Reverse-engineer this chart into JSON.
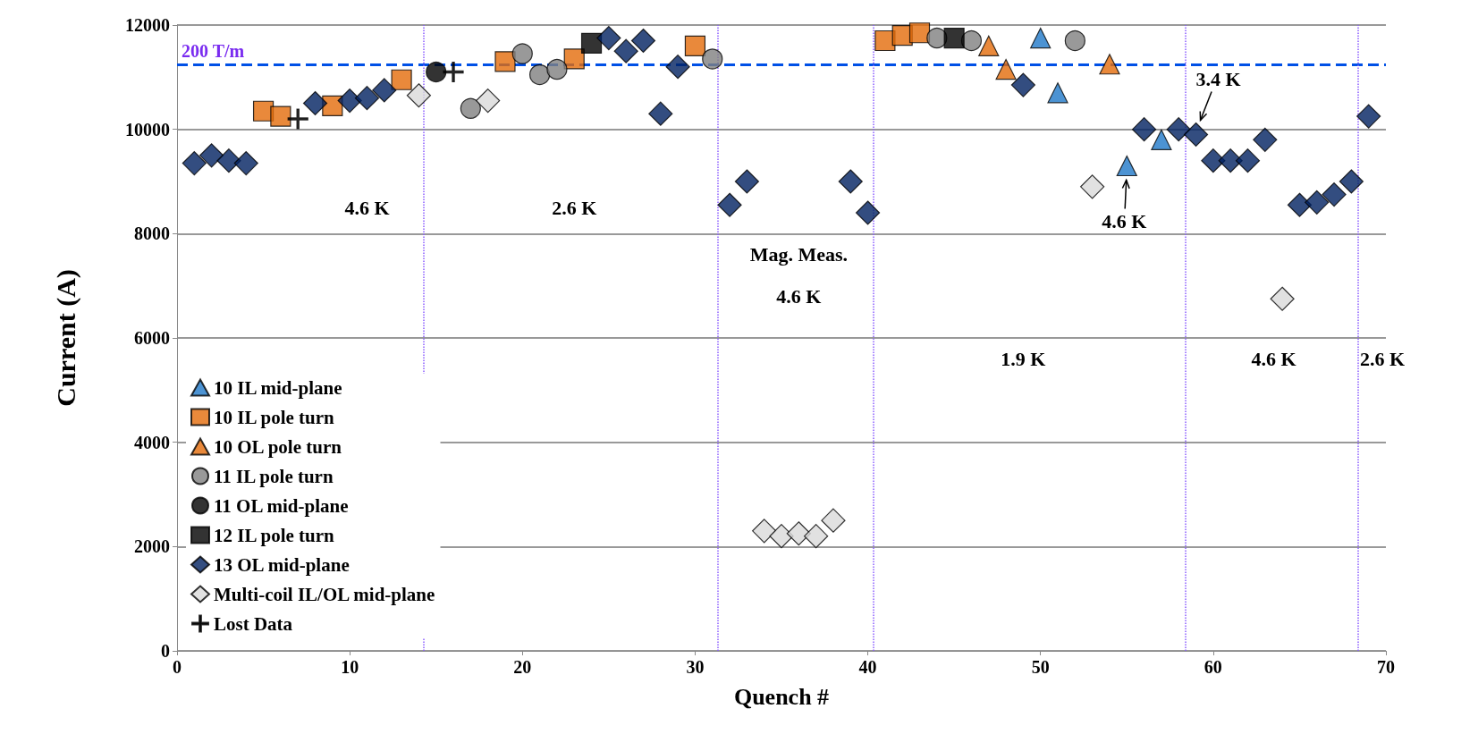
{
  "chart_data": {
    "type": "scatter",
    "xlabel": "Quench #",
    "ylabel": "Current (A)",
    "xlim": [
      0,
      70
    ],
    "xticks": [
      0,
      10,
      20,
      30,
      40,
      50,
      60,
      70
    ],
    "ylim": [
      0,
      12000
    ],
    "yticks": [
      0,
      2000,
      4000,
      6000,
      8000,
      10000,
      12000
    ],
    "grid": "y",
    "legend": "bottom left",
    "series": [
      {
        "name": "10 IL mid-plane",
        "color": "#1f78c8",
        "marker": "triangle",
        "x": [
          50,
          51,
          55,
          57
        ],
        "values": [
          11750,
          10700,
          9300,
          9800
        ]
      },
      {
        "name": "10 IL pole turn",
        "color": "#e36c0a",
        "marker": "square",
        "x": [
          5,
          6,
          9,
          13,
          19,
          23,
          30,
          41,
          42,
          43
        ],
        "values": [
          10350,
          10250,
          10450,
          10950,
          11300,
          11350,
          11600,
          11700,
          11800,
          11850
        ]
      },
      {
        "name": "10 OL pole turn",
        "color": "#e36c0a",
        "marker": "triangle",
        "x": [
          47,
          48,
          54
        ],
        "values": [
          11600,
          11150,
          11250
        ]
      },
      {
        "name": "11 IL pole turn",
        "color": "#808080",
        "marker": "circle",
        "x": [
          17,
          20,
          21,
          22,
          31,
          44,
          46,
          52
        ],
        "values": [
          10400,
          11450,
          11050,
          11150,
          11350,
          11750,
          11700,
          11700
        ]
      },
      {
        "name": "11 OL mid-plane",
        "color": "#000000",
        "marker": "circle",
        "x": [
          15
        ],
        "values": [
          11100
        ]
      },
      {
        "name": "12 IL pole turn",
        "color": "#000000",
        "marker": "square",
        "x": [
          24,
          45
        ],
        "values": [
          11650,
          11750
        ]
      },
      {
        "name": "13 OL mid-plane",
        "color": "#002060",
        "marker": "diamond",
        "x": [
          1,
          2,
          3,
          4,
          8,
          10,
          11,
          12,
          25,
          26,
          27,
          28,
          29,
          32,
          33,
          39,
          40,
          49,
          56,
          58,
          59,
          60,
          61,
          62,
          63,
          65,
          66,
          67,
          68,
          69
        ],
        "values": [
          9350,
          9500,
          9400,
          9350,
          10500,
          10550,
          10600,
          10750,
          11750,
          11500,
          11700,
          10300,
          11200,
          8550,
          9000,
          9000,
          8400,
          10850,
          10000,
          10000,
          9900,
          9400,
          9400,
          9400,
          9800,
          8550,
          8600,
          8750,
          9000,
          10250
        ]
      },
      {
        "name": "Multi-coil IL/OL mid-plane",
        "color": "#d9d9d9",
        "marker": "diamond",
        "x": [
          14,
          18,
          34,
          35,
          36,
          37,
          38,
          53,
          64
        ],
        "values": [
          10650,
          10550,
          2300,
          2200,
          2250,
          2200,
          2500,
          8900,
          6750
        ]
      },
      {
        "name": "Lost Data",
        "color": "#000000",
        "marker": "cross",
        "x": [
          7,
          16
        ],
        "values": [
          10200,
          11100
        ]
      }
    ],
    "ref_lines": [
      {
        "axis": "y",
        "value": 11250,
        "label": "200 T/m",
        "color": "#0050e6",
        "line_style": "dashed"
      },
      {
        "axis": "x",
        "value": 14.3,
        "color": "#8a5cff",
        "line_style": "dotted"
      },
      {
        "axis": "x",
        "value": 31.3,
        "color": "#8a5cff",
        "line_style": "dotted"
      },
      {
        "axis": "x",
        "value": 40.3,
        "color": "#8a5cff",
        "line_style": "dotted"
      },
      {
        "axis": "x",
        "value": 58.4,
        "color": "#8a5cff",
        "line_style": "dotted"
      },
      {
        "axis": "x",
        "value": 68.4,
        "color": "#8a5cff",
        "line_style": "dotted"
      }
    ],
    "annotations": [
      "4.6 K",
      "2.6 K",
      "Mag. Meas.",
      "4.6 K",
      "1.9 K",
      "4.6 K",
      "2.6 K",
      {
        "text": "3.4 K",
        "x": 59,
        "y": 9900
      },
      {
        "text": "4.6 K",
        "x": 55,
        "y": 9300
      }
    ]
  }
}
